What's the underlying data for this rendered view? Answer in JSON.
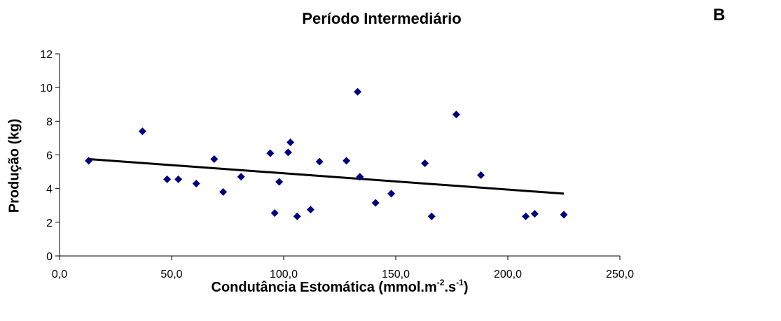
{
  "chart_data": {
    "type": "scatter",
    "title": "Período Intermediário",
    "panel_label": "B",
    "xlabel": {
      "main": "Condutância Estomática (mmol.m",
      "sup1": "-2",
      "mid": ".s",
      "sup2": "-1",
      "end": ")"
    },
    "ylabel": "Produção (kg)",
    "xlim": [
      0,
      250
    ],
    "ylim": [
      0,
      12
    ],
    "x_ticks": [
      0,
      50,
      100,
      150,
      200,
      250
    ],
    "x_tick_labels": [
      "0,0",
      "50,0",
      "100,0",
      "150,0",
      "200,0",
      "250,0"
    ],
    "y_ticks": [
      0,
      2,
      4,
      6,
      8,
      10,
      12
    ],
    "y_tick_labels": [
      "0",
      "2",
      "4",
      "6",
      "8",
      "10",
      "12"
    ],
    "grid": false,
    "marker_color": "#000080",
    "line_color": "#000000",
    "points": [
      {
        "x": 13,
        "y": 5.65
      },
      {
        "x": 37,
        "y": 7.4
      },
      {
        "x": 48,
        "y": 4.55
      },
      {
        "x": 53,
        "y": 4.55
      },
      {
        "x": 61,
        "y": 4.3
      },
      {
        "x": 69,
        "y": 5.75
      },
      {
        "x": 73,
        "y": 3.8
      },
      {
        "x": 81,
        "y": 4.7
      },
      {
        "x": 94,
        "y": 6.1
      },
      {
        "x": 96,
        "y": 2.55
      },
      {
        "x": 98,
        "y": 4.4
      },
      {
        "x": 102,
        "y": 6.15
      },
      {
        "x": 103,
        "y": 6.75
      },
      {
        "x": 106,
        "y": 2.35
      },
      {
        "x": 112,
        "y": 2.75
      },
      {
        "x": 116,
        "y": 5.6
      },
      {
        "x": 128,
        "y": 5.65
      },
      {
        "x": 133,
        "y": 9.75
      },
      {
        "x": 134,
        "y": 4.7
      },
      {
        "x": 141,
        "y": 3.15
      },
      {
        "x": 148,
        "y": 3.7
      },
      {
        "x": 163,
        "y": 5.5
      },
      {
        "x": 166,
        "y": 2.35
      },
      {
        "x": 177,
        "y": 8.4
      },
      {
        "x": 188,
        "y": 4.8
      },
      {
        "x": 208,
        "y": 2.35
      },
      {
        "x": 212,
        "y": 2.5
      },
      {
        "x": 225,
        "y": 2.45
      }
    ],
    "trendline": {
      "x1": 13,
      "y1": 5.75,
      "x2": 225,
      "y2": 3.7
    }
  }
}
